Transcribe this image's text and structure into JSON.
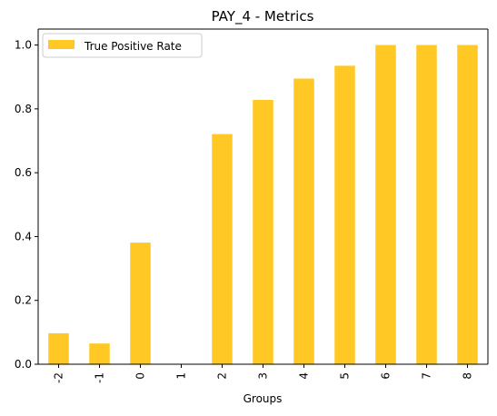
{
  "chart_data": {
    "type": "bar",
    "title": "PAY_4 - Metrics",
    "xlabel": "Groups",
    "ylabel": "",
    "categories": [
      "-2",
      "-1",
      "0",
      "1",
      "2",
      "3",
      "4",
      "5",
      "6",
      "7",
      "8"
    ],
    "series": [
      {
        "name": "True Positive Rate",
        "values": [
          0.097,
          0.065,
          0.381,
          0.0,
          0.721,
          0.828,
          0.895,
          0.935,
          1.0,
          1.0,
          1.0
        ]
      }
    ],
    "ylim": [
      0,
      1.05
    ],
    "yticks": [
      "0.0",
      "0.2",
      "0.4",
      "0.6",
      "0.8",
      "1.0"
    ],
    "grid": false,
    "legend_position": "top-left",
    "colors": {
      "bar": "#FFC825",
      "axis": "#000000",
      "legend_border": "#cccccc"
    }
  }
}
